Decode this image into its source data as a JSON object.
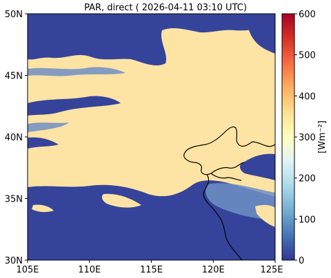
{
  "title": "PAR, direct ( 2026-04-11 03:10 UTC)",
  "map": {
    "lat_ticks": [
      "50N",
      "45N",
      "40N",
      "35N",
      "30N"
    ],
    "lon_ticks": [
      "105E",
      "110E",
      "115E",
      "120E",
      "125E"
    ],
    "lon_range": [
      105,
      125
    ],
    "lat_range": [
      30,
      50
    ]
  },
  "colorbar": {
    "label": "[Wm⁻²]",
    "ticks": [
      "0",
      "100",
      "200",
      "300",
      "400",
      "500",
      "600"
    ],
    "range": [
      0,
      600
    ],
    "colormap": "RdYlBu_r",
    "colors": [
      "#313695",
      "#4575b4",
      "#74add1",
      "#abd9e9",
      "#e0f3f8",
      "#ffffbf",
      "#fee090",
      "#fdae61",
      "#f46d43",
      "#d73027",
      "#a50026"
    ]
  },
  "palette": {
    "clear_sky": "#fde3a4",
    "cloud": "#35449a",
    "thin_cloud": "#6f8fc4",
    "coastline": "#000000"
  }
}
